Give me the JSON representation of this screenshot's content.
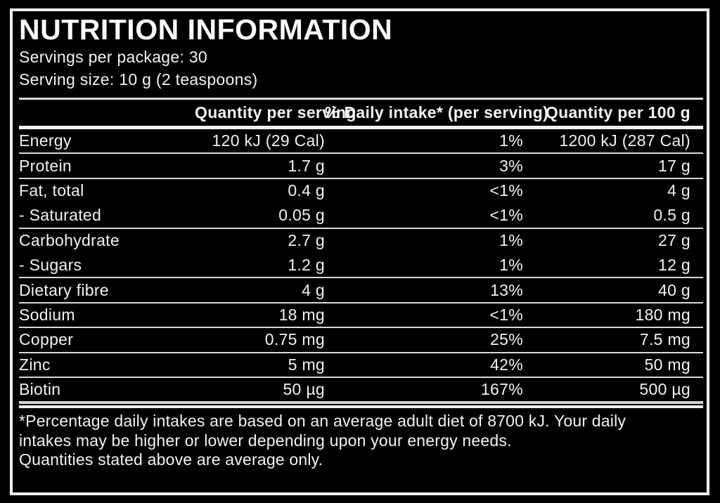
{
  "header": {
    "title": "NUTRITION INFORMATION",
    "servings_line": "Servings per package: 30",
    "serving_size_line": "Serving size: 10 g (2 teaspoons)"
  },
  "table": {
    "columns": {
      "nutrient": "",
      "quantity_per_serving": "Quantity\nper serving",
      "daily_intake": "% Daily intake*\n(per serving)",
      "quantity_per_100g": "Quantity\nper 100 g"
    },
    "rows": [
      {
        "nutrient": "Energy",
        "per_serving": "120 kJ (29 Cal)",
        "daily_intake": "1%",
        "per_100g": "1200 kJ (287 Cal)",
        "divider_after": true
      },
      {
        "nutrient": "Protein",
        "per_serving": "1.7 g",
        "daily_intake": "3%",
        "per_100g": "17 g",
        "divider_after": true
      },
      {
        "nutrient": "Fat, total",
        "per_serving": "0.4 g",
        "daily_intake": "<1%",
        "per_100g": "4 g",
        "divider_after": false
      },
      {
        "nutrient": "- Saturated",
        "per_serving": "0.05 g",
        "daily_intake": "<1%",
        "per_100g": "0.5 g",
        "divider_after": true
      },
      {
        "nutrient": "Carbohydrate",
        "per_serving": "2.7 g",
        "daily_intake": "1%",
        "per_100g": "27 g",
        "divider_after": false
      },
      {
        "nutrient": "- Sugars",
        "per_serving": "1.2 g",
        "daily_intake": "1%",
        "per_100g": "12 g",
        "divider_after": true
      },
      {
        "nutrient": "Dietary fibre",
        "per_serving": "4 g",
        "daily_intake": "13%",
        "per_100g": "40 g",
        "divider_after": true
      },
      {
        "nutrient": "Sodium",
        "per_serving": "18 mg",
        "daily_intake": "<1%",
        "per_100g": "180 mg",
        "divider_after": true
      },
      {
        "nutrient": "Copper",
        "per_serving": "0.75 mg",
        "daily_intake": "25%",
        "per_100g": "7.5 mg",
        "divider_after": true
      },
      {
        "nutrient": "Zinc",
        "per_serving": "5 mg",
        "daily_intake": "42%",
        "per_100g": "50 mg",
        "divider_after": true
      },
      {
        "nutrient": "Biotin",
        "per_serving": "50 µg",
        "daily_intake": "167%",
        "per_100g": "500 µg",
        "divider_after": true
      }
    ]
  },
  "footnote": "*Percentage daily intakes are based on an average adult diet of 8700 kJ. Your daily\nintakes may be higher or lower depending upon your energy needs.\nQuantities stated above are average only.",
  "colors": {
    "background": "#000000",
    "text": "#f2f2f2",
    "border": "#f0f0f0",
    "rule": "#d9d9d9"
  }
}
